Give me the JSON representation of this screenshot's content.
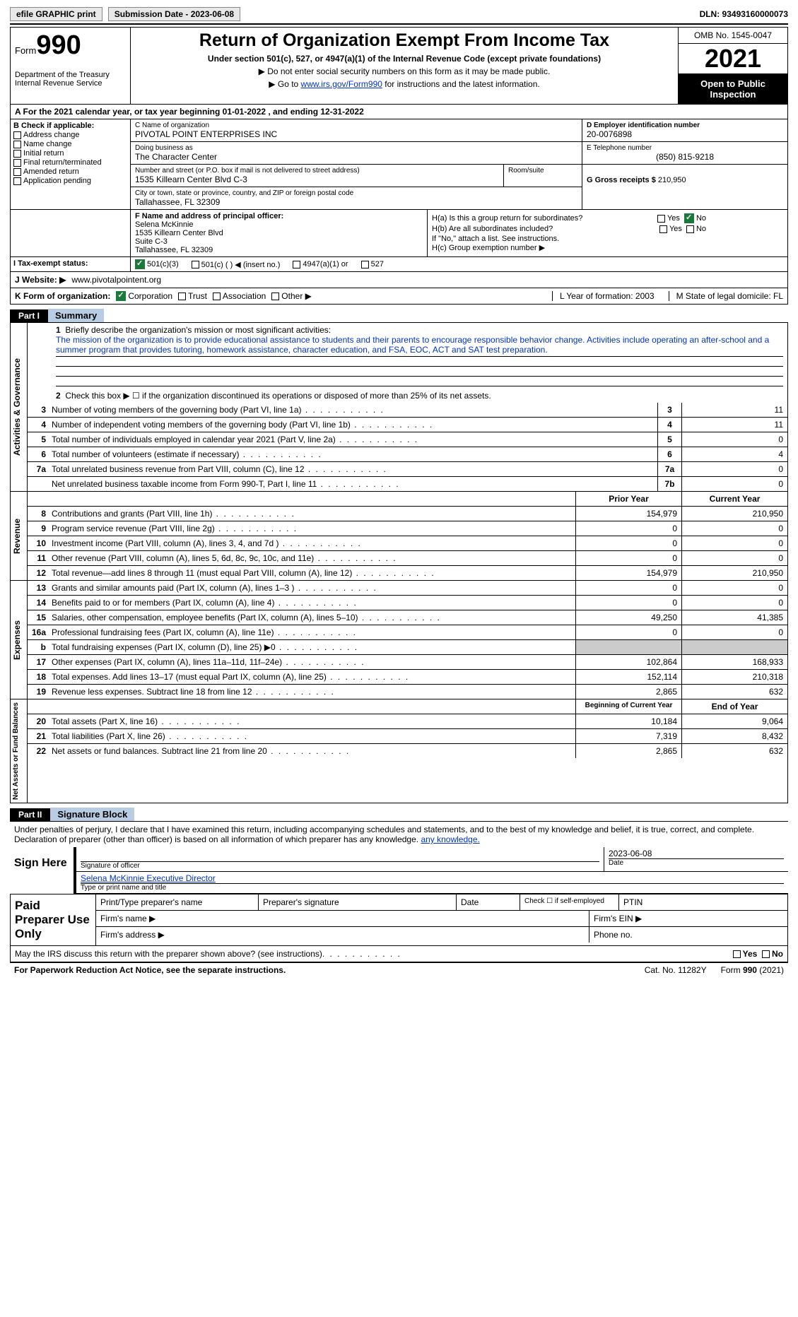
{
  "topbar": {
    "efile": "efile GRAPHIC print",
    "submission": "Submission Date - 2023-06-08",
    "dln": "DLN: 93493160000073"
  },
  "header": {
    "form_word": "Form",
    "form_num": "990",
    "dept": "Department of the Treasury\nInternal Revenue Service",
    "title": "Return of Organization Exempt From Income Tax",
    "subtitle": "Under section 501(c), 527, or 4947(a)(1) of the Internal Revenue Code (except private foundations)",
    "instr1": "▶ Do not enter social security numbers on this form as it may be made public.",
    "instr2_pre": "▶ Go to ",
    "instr2_link": "www.irs.gov/Form990",
    "instr2_post": " for instructions and the latest information.",
    "omb": "OMB No. 1545-0047",
    "year": "2021",
    "open": "Open to Public Inspection"
  },
  "rowA": "A   For the 2021 calendar year, or tax year beginning 01-01-2022    , and ending 12-31-2022",
  "B": {
    "head": "B Check if applicable:",
    "items": [
      "Address change",
      "Name change",
      "Initial return",
      "Final return/terminated",
      "Amended return",
      "Application pending"
    ]
  },
  "C": {
    "name_lbl": "C Name of organization",
    "name": "PIVOTAL POINT ENTERPRISES INC",
    "dba_lbl": "Doing business as",
    "dba": "The Character Center",
    "street_lbl": "Number and street (or P.O. box if mail is not delivered to street address)",
    "street": "1535 Killearn Center Blvd C-3",
    "room_lbl": "Room/suite",
    "city_lbl": "City or town, state or province, country, and ZIP or foreign postal code",
    "city": "Tallahassee, FL  32309"
  },
  "D": {
    "ein_lbl": "D Employer identification number",
    "ein": "20-0076898",
    "tel_lbl": "E Telephone number",
    "tel": "(850) 815-9218",
    "gross_lbl": "G Gross receipts $",
    "gross": "210,950"
  },
  "F": {
    "lbl": "F  Name and address of principal officer:",
    "name": "Selena McKinnie",
    "addr1": "1535 Killearn Center Blvd",
    "addr2": "Suite C-3",
    "addr3": "Tallahassee, FL  32309"
  },
  "H": {
    "a": "H(a)  Is this a group return for subordinates?",
    "b": "H(b)  Are all subordinates included?",
    "b2": "If \"No,\" attach a list. See instructions.",
    "c": "H(c)  Group exemption number ▶",
    "yes": "Yes",
    "no": "No"
  },
  "I": {
    "lbl": "I   Tax-exempt status:",
    "opts": [
      "501(c)(3)",
      "501(c) (  ) ◀ (insert no.)",
      "4947(a)(1) or",
      "527"
    ]
  },
  "J": {
    "lbl": "J   Website: ▶",
    "val": "www.pivotalpointent.org"
  },
  "K": {
    "lbl": "K Form of organization:",
    "opts": [
      "Corporation",
      "Trust",
      "Association",
      "Other ▶"
    ],
    "L": "L Year of formation: 2003",
    "M": "M State of legal domicile: FL"
  },
  "part1": {
    "tab": "Part I",
    "title": "Summary"
  },
  "mission": {
    "num": "1",
    "lbl": "Briefly describe the organization's mission or most significant activities:",
    "txt": "The mission of the organization is to provide educational assistance to students and their parents to encourage responsible behavior change. Activities include operating an after-school and a summer program that provides tutoring, homework assistance, character education, and FSA, EOC, ACT and SAT test preparation."
  },
  "line2": "Check this box ▶ ☐  if the organization discontinued its operations or disposed of more than 25% of its net assets.",
  "summary_gov": [
    {
      "n": "3",
      "d": "Number of voting members of the governing body (Part VI, line 1a)",
      "c": "3",
      "v": "11"
    },
    {
      "n": "4",
      "d": "Number of independent voting members of the governing body (Part VI, line 1b)",
      "c": "4",
      "v": "11"
    },
    {
      "n": "5",
      "d": "Total number of individuals employed in calendar year 2021 (Part V, line 2a)",
      "c": "5",
      "v": "0"
    },
    {
      "n": "6",
      "d": "Total number of volunteers (estimate if necessary)",
      "c": "6",
      "v": "4"
    },
    {
      "n": "7a",
      "d": "Total unrelated business revenue from Part VIII, column (C), line 12",
      "c": "7a",
      "v": "0"
    },
    {
      "n": "",
      "d": "Net unrelated business taxable income from Form 990-T, Part I, line 11",
      "c": "7b",
      "v": "0"
    }
  ],
  "colhdr": {
    "prior": "Prior Year",
    "current": "Current Year",
    "boy": "Beginning of Current Year",
    "eoy": "End of Year"
  },
  "revenue": [
    {
      "n": "8",
      "d": "Contributions and grants (Part VIII, line 1h)",
      "p": "154,979",
      "c": "210,950"
    },
    {
      "n": "9",
      "d": "Program service revenue (Part VIII, line 2g)",
      "p": "0",
      "c": "0"
    },
    {
      "n": "10",
      "d": "Investment income (Part VIII, column (A), lines 3, 4, and 7d )",
      "p": "0",
      "c": "0"
    },
    {
      "n": "11",
      "d": "Other revenue (Part VIII, column (A), lines 5, 6d, 8c, 9c, 10c, and 11e)",
      "p": "0",
      "c": "0"
    },
    {
      "n": "12",
      "d": "Total revenue—add lines 8 through 11 (must equal Part VIII, column (A), line 12)",
      "p": "154,979",
      "c": "210,950"
    }
  ],
  "expenses": [
    {
      "n": "13",
      "d": "Grants and similar amounts paid (Part IX, column (A), lines 1–3 )",
      "p": "0",
      "c": "0"
    },
    {
      "n": "14",
      "d": "Benefits paid to or for members (Part IX, column (A), line 4)",
      "p": "0",
      "c": "0"
    },
    {
      "n": "15",
      "d": "Salaries, other compensation, employee benefits (Part IX, column (A), lines 5–10)",
      "p": "49,250",
      "c": "41,385"
    },
    {
      "n": "16a",
      "d": "Professional fundraising fees (Part IX, column (A), line 11e)",
      "p": "0",
      "c": "0"
    },
    {
      "n": "b",
      "d": "Total fundraising expenses (Part IX, column (D), line 25) ▶0",
      "p": "",
      "c": "",
      "gray": true
    },
    {
      "n": "17",
      "d": "Other expenses (Part IX, column (A), lines 11a–11d, 11f–24e)",
      "p": "102,864",
      "c": "168,933"
    },
    {
      "n": "18",
      "d": "Total expenses. Add lines 13–17 (must equal Part IX, column (A), line 25)",
      "p": "152,114",
      "c": "210,318"
    },
    {
      "n": "19",
      "d": "Revenue less expenses. Subtract line 18 from line 12",
      "p": "2,865",
      "c": "632"
    }
  ],
  "netassets": [
    {
      "n": "20",
      "d": "Total assets (Part X, line 16)",
      "p": "10,184",
      "c": "9,064"
    },
    {
      "n": "21",
      "d": "Total liabilities (Part X, line 26)",
      "p": "7,319",
      "c": "8,432"
    },
    {
      "n": "22",
      "d": "Net assets or fund balances. Subtract line 21 from line 20",
      "p": "2,865",
      "c": "632"
    }
  ],
  "vtabs": {
    "gov": "Activities & Governance",
    "rev": "Revenue",
    "exp": "Expenses",
    "net": "Net Assets or\nFund Balances"
  },
  "part2": {
    "tab": "Part II",
    "title": "Signature Block"
  },
  "sig": {
    "decl": "Under penalties of perjury, I declare that I have examined this return, including accompanying schedules and statements, and to the best of my knowledge and belief, it is true, correct, and complete. Declaration of preparer (other than officer) is based on all information of which preparer has any knowledge.",
    "here": "Sign Here",
    "officer_lbl": "Signature of officer",
    "date_lbl": "Date",
    "date": "2023-06-08",
    "name": "Selena McKinnie  Executive Director",
    "name_lbl": "Type or print name and title"
  },
  "prep": {
    "title": "Paid Preparer Use Only",
    "c1": "Print/Type preparer's name",
    "c2": "Preparer's signature",
    "c3": "Date",
    "c4": "Check ☐ if self-employed",
    "c5": "PTIN",
    "f1": "Firm's name   ▶",
    "f2": "Firm's EIN ▶",
    "f3": "Firm's address ▶",
    "f4": "Phone no."
  },
  "discuss": "May the IRS discuss this return with the preparer shown above? (see instructions)",
  "footer": {
    "l": "For Paperwork Reduction Act Notice, see the separate instructions.",
    "m": "Cat. No. 11282Y",
    "r": "Form 990 (2021)"
  },
  "colors": {
    "accent": "#1a7a3a",
    "partbg": "#b8cce4",
    "link": "#0033cc",
    "gray": "#cccccc"
  }
}
